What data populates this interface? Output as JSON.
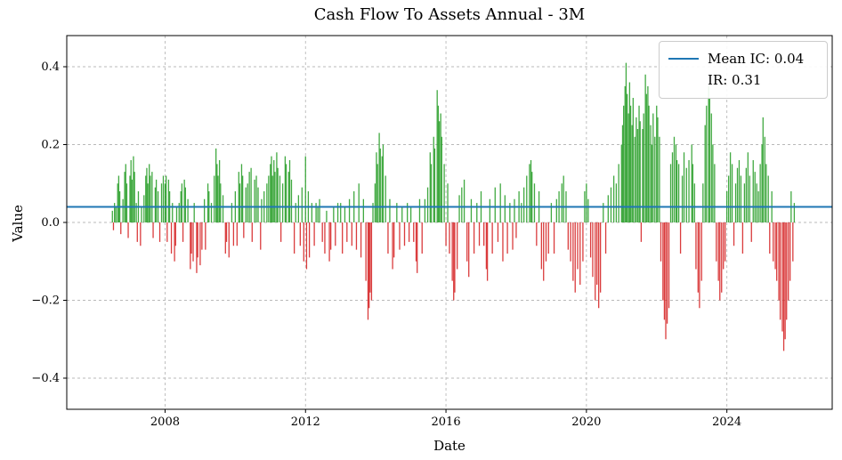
{
  "chart_data": {
    "type": "bar",
    "title": "Cash Flow To Assets Annual - 3M",
    "xlabel": "Date",
    "ylabel": "Value",
    "xlim": [
      2005.2,
      2027.0
    ],
    "ylim": [
      -0.48,
      0.48
    ],
    "x_ticks": [
      2008,
      2012,
      2016,
      2020,
      2024
    ],
    "x_tick_labels": [
      "2008",
      "2012",
      "2016",
      "2020",
      "2024"
    ],
    "y_ticks": [
      -0.4,
      -0.2,
      0.0,
      0.2,
      0.4
    ],
    "y_tick_labels": [
      "−0.4",
      "−0.2",
      "0.0",
      "0.2",
      "0.4"
    ],
    "grid": true,
    "legend_position": "top-right",
    "mean_line": {
      "value": 0.04,
      "color": "#1f77b4"
    },
    "legend": {
      "mean_label": "Mean IC: 0.04",
      "ir_label": "IR: 0.31"
    },
    "colors": {
      "positive": "#2ca02c",
      "negative": "#d62728",
      "grid": "#b9b9b9",
      "axes": "#000000"
    },
    "points": [
      [
        2006.5,
        0.03
      ],
      [
        2006.53,
        -0.02
      ],
      [
        2006.56,
        0.05
      ],
      [
        2006.6,
        0.04
      ],
      [
        2006.65,
        0.1
      ],
      [
        2006.68,
        0.12
      ],
      [
        2006.71,
        0.08
      ],
      [
        2006.74,
        -0.03
      ],
      [
        2006.8,
        0.06
      ],
      [
        2006.85,
        0.13
      ],
      [
        2006.88,
        0.15
      ],
      [
        2006.91,
        0.1
      ],
      [
        2006.95,
        -0.04
      ],
      [
        2007.0,
        0.12
      ],
      [
        2007.03,
        0.16
      ],
      [
        2007.06,
        0.11
      ],
      [
        2007.1,
        0.17
      ],
      [
        2007.13,
        0.13
      ],
      [
        2007.18,
        0.05
      ],
      [
        2007.21,
        -0.05
      ],
      [
        2007.24,
        0.08
      ],
      [
        2007.3,
        -0.06
      ],
      [
        2007.33,
        0.04
      ],
      [
        2007.4,
        0.07
      ],
      [
        2007.45,
        0.12
      ],
      [
        2007.48,
        0.14
      ],
      [
        2007.51,
        0.1
      ],
      [
        2007.55,
        0.15
      ],
      [
        2007.58,
        0.12
      ],
      [
        2007.63,
        0.13
      ],
      [
        2007.66,
        -0.04
      ],
      [
        2007.72,
        0.09
      ],
      [
        2007.75,
        0.11
      ],
      [
        2007.8,
        0.08
      ],
      [
        2007.85,
        -0.05
      ],
      [
        2007.9,
        0.1
      ],
      [
        2007.95,
        0.12
      ],
      [
        2008.0,
        0.1
      ],
      [
        2008.03,
        0.12
      ],
      [
        2008.06,
        -0.05
      ],
      [
        2008.1,
        0.11
      ],
      [
        2008.13,
        0.08
      ],
      [
        2008.18,
        -0.08
      ],
      [
        2008.21,
        0.05
      ],
      [
        2008.27,
        -0.1
      ],
      [
        2008.3,
        -0.06
      ],
      [
        2008.33,
        0.04
      ],
      [
        2008.4,
        0.05
      ],
      [
        2008.45,
        0.08
      ],
      [
        2008.48,
        0.1
      ],
      [
        2008.51,
        -0.05
      ],
      [
        2008.55,
        0.11
      ],
      [
        2008.58,
        0.09
      ],
      [
        2008.65,
        0.06
      ],
      [
        2008.72,
        -0.12
      ],
      [
        2008.75,
        -0.08
      ],
      [
        2008.8,
        -0.1
      ],
      [
        2008.83,
        0.05
      ],
      [
        2008.9,
        -0.13
      ],
      [
        2008.93,
        -0.09
      ],
      [
        2009.0,
        -0.11
      ],
      [
        2009.05,
        -0.07
      ],
      [
        2009.12,
        0.06
      ],
      [
        2009.15,
        -0.07
      ],
      [
        2009.22,
        0.1
      ],
      [
        2009.25,
        0.08
      ],
      [
        2009.32,
        0.05
      ],
      [
        2009.4,
        0.12
      ],
      [
        2009.45,
        0.19
      ],
      [
        2009.48,
        0.15
      ],
      [
        2009.51,
        0.12
      ],
      [
        2009.55,
        0.16
      ],
      [
        2009.58,
        0.1
      ],
      [
        2009.65,
        0.07
      ],
      [
        2009.72,
        -0.08
      ],
      [
        2009.75,
        -0.05
      ],
      [
        2009.82,
        -0.09
      ],
      [
        2009.9,
        0.05
      ],
      [
        2009.95,
        -0.06
      ],
      [
        2010.0,
        0.08
      ],
      [
        2010.05,
        -0.06
      ],
      [
        2010.1,
        0.13
      ],
      [
        2010.13,
        0.1
      ],
      [
        2010.18,
        0.15
      ],
      [
        2010.21,
        0.12
      ],
      [
        2010.24,
        -0.04
      ],
      [
        2010.3,
        0.09
      ],
      [
        2010.35,
        0.1
      ],
      [
        2010.4,
        0.13
      ],
      [
        2010.45,
        0.14
      ],
      [
        2010.48,
        -0.05
      ],
      [
        2010.55,
        0.11
      ],
      [
        2010.6,
        0.12
      ],
      [
        2010.65,
        0.09
      ],
      [
        2010.72,
        -0.07
      ],
      [
        2010.75,
        0.06
      ],
      [
        2010.82,
        0.08
      ],
      [
        2010.9,
        0.1
      ],
      [
        2010.95,
        0.12
      ],
      [
        2011.0,
        0.15
      ],
      [
        2011.03,
        0.17
      ],
      [
        2011.06,
        0.12
      ],
      [
        2011.1,
        0.16
      ],
      [
        2011.13,
        0.13
      ],
      [
        2011.18,
        0.18
      ],
      [
        2011.21,
        0.14
      ],
      [
        2011.27,
        0.12
      ],
      [
        2011.3,
        -0.05
      ],
      [
        2011.35,
        0.1
      ],
      [
        2011.42,
        0.17
      ],
      [
        2011.45,
        0.15
      ],
      [
        2011.52,
        0.13
      ],
      [
        2011.55,
        0.16
      ],
      [
        2011.6,
        0.11
      ],
      [
        2011.68,
        -0.08
      ],
      [
        2011.72,
        0.05
      ],
      [
        2011.8,
        0.07
      ],
      [
        2011.85,
        -0.06
      ],
      [
        2011.9,
        0.09
      ],
      [
        2011.95,
        -0.1
      ],
      [
        2012.0,
        0.17
      ],
      [
        2012.03,
        -0.12
      ],
      [
        2012.08,
        0.08
      ],
      [
        2012.11,
        -0.09
      ],
      [
        2012.18,
        0.05
      ],
      [
        2012.25,
        -0.06
      ],
      [
        2012.3,
        0.05
      ],
      [
        2012.35,
        0.04
      ],
      [
        2012.4,
        0.06
      ],
      [
        2012.48,
        -0.05
      ],
      [
        2012.55,
        -0.08
      ],
      [
        2012.6,
        0.03
      ],
      [
        2012.68,
        -0.1
      ],
      [
        2012.72,
        -0.07
      ],
      [
        2012.8,
        0.04
      ],
      [
        2012.85,
        -0.06
      ],
      [
        2012.92,
        0.05
      ],
      [
        2013.0,
        0.05
      ],
      [
        2013.05,
        -0.08
      ],
      [
        2013.12,
        0.04
      ],
      [
        2013.18,
        -0.05
      ],
      [
        2013.25,
        0.06
      ],
      [
        2013.32,
        -0.06
      ],
      [
        2013.38,
        0.08
      ],
      [
        2013.45,
        -0.07
      ],
      [
        2013.52,
        0.1
      ],
      [
        2013.58,
        -0.09
      ],
      [
        2013.65,
        0.06
      ],
      [
        2013.72,
        -0.15
      ],
      [
        2013.78,
        -0.25
      ],
      [
        2013.81,
        -0.22
      ],
      [
        2013.84,
        -0.18
      ],
      [
        2013.88,
        -0.2
      ],
      [
        2013.92,
        0.05
      ],
      [
        2013.98,
        0.1
      ],
      [
        2014.02,
        0.18
      ],
      [
        2014.05,
        0.15
      ],
      [
        2014.1,
        0.23
      ],
      [
        2014.13,
        0.19
      ],
      [
        2014.18,
        0.17
      ],
      [
        2014.21,
        0.2
      ],
      [
        2014.28,
        0.12
      ],
      [
        2014.35,
        -0.08
      ],
      [
        2014.4,
        0.06
      ],
      [
        2014.48,
        -0.12
      ],
      [
        2014.52,
        -0.09
      ],
      [
        2014.6,
        0.05
      ],
      [
        2014.68,
        -0.07
      ],
      [
        2014.75,
        0.04
      ],
      [
        2014.82,
        -0.06
      ],
      [
        2014.9,
        0.05
      ],
      [
        2014.95,
        -0.05
      ],
      [
        2015.0,
        0.04
      ],
      [
        2015.08,
        -0.05
      ],
      [
        2015.15,
        -0.1
      ],
      [
        2015.18,
        -0.13
      ],
      [
        2015.25,
        0.06
      ],
      [
        2015.32,
        -0.08
      ],
      [
        2015.4,
        0.06
      ],
      [
        2015.48,
        0.09
      ],
      [
        2015.55,
        0.18
      ],
      [
        2015.58,
        0.15
      ],
      [
        2015.65,
        0.22
      ],
      [
        2015.68,
        0.19
      ],
      [
        2015.75,
        0.34
      ],
      [
        2015.78,
        0.3
      ],
      [
        2015.81,
        0.26
      ],
      [
        2015.85,
        0.28
      ],
      [
        2015.88,
        0.22
      ],
      [
        2015.95,
        0.15
      ],
      [
        2016.0,
        -0.06
      ],
      [
        2016.05,
        0.1
      ],
      [
        2016.1,
        -0.08
      ],
      [
        2016.18,
        -0.15
      ],
      [
        2016.22,
        -0.2
      ],
      [
        2016.25,
        -0.18
      ],
      [
        2016.32,
        -0.12
      ],
      [
        2016.38,
        0.07
      ],
      [
        2016.45,
        0.09
      ],
      [
        2016.52,
        0.11
      ],
      [
        2016.6,
        -0.1
      ],
      [
        2016.65,
        -0.14
      ],
      [
        2016.72,
        0.06
      ],
      [
        2016.8,
        -0.08
      ],
      [
        2016.88,
        0.05
      ],
      [
        2016.95,
        -0.06
      ],
      [
        2017.0,
        0.08
      ],
      [
        2017.08,
        -0.06
      ],
      [
        2017.15,
        -0.12
      ],
      [
        2017.18,
        -0.15
      ],
      [
        2017.25,
        0.06
      ],
      [
        2017.32,
        -0.08
      ],
      [
        2017.4,
        0.09
      ],
      [
        2017.48,
        -0.05
      ],
      [
        2017.55,
        0.1
      ],
      [
        2017.62,
        -0.1
      ],
      [
        2017.68,
        0.07
      ],
      [
        2017.75,
        -0.08
      ],
      [
        2017.82,
        0.05
      ],
      [
        2017.9,
        -0.07
      ],
      [
        2017.95,
        0.06
      ],
      [
        2018.0,
        -0.04
      ],
      [
        2018.08,
        0.08
      ],
      [
        2018.15,
        0.05
      ],
      [
        2018.22,
        0.09
      ],
      [
        2018.3,
        0.12
      ],
      [
        2018.38,
        0.15
      ],
      [
        2018.42,
        0.16
      ],
      [
        2018.45,
        0.13
      ],
      [
        2018.52,
        0.1
      ],
      [
        2018.58,
        -0.06
      ],
      [
        2018.65,
        0.08
      ],
      [
        2018.72,
        -0.12
      ],
      [
        2018.78,
        -0.15
      ],
      [
        2018.85,
        -0.1
      ],
      [
        2018.92,
        -0.08
      ],
      [
        2019.0,
        0.05
      ],
      [
        2019.08,
        -0.08
      ],
      [
        2019.15,
        0.06
      ],
      [
        2019.22,
        0.08
      ],
      [
        2019.3,
        0.1
      ],
      [
        2019.35,
        0.12
      ],
      [
        2019.42,
        0.08
      ],
      [
        2019.48,
        -0.07
      ],
      [
        2019.55,
        -0.1
      ],
      [
        2019.62,
        -0.15
      ],
      [
        2019.68,
        -0.18
      ],
      [
        2019.75,
        -0.12
      ],
      [
        2019.82,
        -0.16
      ],
      [
        2019.9,
        -0.1
      ],
      [
        2019.95,
        0.08
      ],
      [
        2020.0,
        0.1
      ],
      [
        2020.05,
        0.06
      ],
      [
        2020.12,
        -0.09
      ],
      [
        2020.18,
        -0.14
      ],
      [
        2020.25,
        -0.2
      ],
      [
        2020.3,
        -0.16
      ],
      [
        2020.35,
        -0.22
      ],
      [
        2020.4,
        -0.18
      ],
      [
        2020.48,
        0.05
      ],
      [
        2020.55,
        -0.08
      ],
      [
        2020.62,
        0.07
      ],
      [
        2020.7,
        0.09
      ],
      [
        2020.78,
        0.12
      ],
      [
        2020.85,
        0.1
      ],
      [
        2020.92,
        0.15
      ],
      [
        2021.0,
        0.2
      ],
      [
        2021.03,
        0.25
      ],
      [
        2021.06,
        0.3
      ],
      [
        2021.1,
        0.35
      ],
      [
        2021.13,
        0.41
      ],
      [
        2021.16,
        0.33
      ],
      [
        2021.2,
        0.28
      ],
      [
        2021.23,
        0.36
      ],
      [
        2021.26,
        0.3
      ],
      [
        2021.3,
        0.25
      ],
      [
        2021.33,
        0.32
      ],
      [
        2021.38,
        0.22
      ],
      [
        2021.42,
        0.27
      ],
      [
        2021.46,
        0.24
      ],
      [
        2021.5,
        0.3
      ],
      [
        2021.53,
        0.26
      ],
      [
        2021.56,
        -0.05
      ],
      [
        2021.6,
        0.24
      ],
      [
        2021.63,
        0.28
      ],
      [
        2021.68,
        0.38
      ],
      [
        2021.71,
        0.33
      ],
      [
        2021.75,
        0.35
      ],
      [
        2021.78,
        0.3
      ],
      [
        2021.83,
        0.25
      ],
      [
        2021.86,
        0.2
      ],
      [
        2021.9,
        0.28
      ],
      [
        2021.95,
        0.22
      ],
      [
        2022.0,
        0.3
      ],
      [
        2022.03,
        0.27
      ],
      [
        2022.08,
        0.22
      ],
      [
        2022.12,
        -0.1
      ],
      [
        2022.18,
        -0.2
      ],
      [
        2022.22,
        -0.25
      ],
      [
        2022.26,
        -0.3
      ],
      [
        2022.3,
        -0.26
      ],
      [
        2022.35,
        -0.22
      ],
      [
        2022.4,
        0.15
      ],
      [
        2022.45,
        0.18
      ],
      [
        2022.5,
        0.22
      ],
      [
        2022.55,
        0.2
      ],
      [
        2022.58,
        0.16
      ],
      [
        2022.63,
        0.15
      ],
      [
        2022.68,
        -0.08
      ],
      [
        2022.73,
        0.12
      ],
      [
        2022.78,
        0.18
      ],
      [
        2022.85,
        0.14
      ],
      [
        2022.92,
        0.16
      ],
      [
        2023.0,
        0.2
      ],
      [
        2023.03,
        0.15
      ],
      [
        2023.08,
        0.1
      ],
      [
        2023.12,
        -0.12
      ],
      [
        2023.18,
        -0.18
      ],
      [
        2023.22,
        -0.22
      ],
      [
        2023.28,
        -0.15
      ],
      [
        2023.32,
        0.1
      ],
      [
        2023.38,
        0.25
      ],
      [
        2023.42,
        0.3
      ],
      [
        2023.48,
        0.35
      ],
      [
        2023.51,
        0.32
      ],
      [
        2023.56,
        0.28
      ],
      [
        2023.6,
        0.2
      ],
      [
        2023.65,
        0.15
      ],
      [
        2023.7,
        -0.1
      ],
      [
        2023.76,
        -0.15
      ],
      [
        2023.8,
        -0.2
      ],
      [
        2023.85,
        -0.18
      ],
      [
        2023.9,
        -0.12
      ],
      [
        2023.95,
        -0.1
      ],
      [
        2024.0,
        0.08
      ],
      [
        2024.05,
        0.12
      ],
      [
        2024.1,
        0.18
      ],
      [
        2024.15,
        0.15
      ],
      [
        2024.2,
        -0.06
      ],
      [
        2024.25,
        0.1
      ],
      [
        2024.3,
        0.14
      ],
      [
        2024.35,
        0.16
      ],
      [
        2024.4,
        0.12
      ],
      [
        2024.45,
        -0.08
      ],
      [
        2024.5,
        0.1
      ],
      [
        2024.55,
        0.14
      ],
      [
        2024.6,
        0.18
      ],
      [
        2024.65,
        0.12
      ],
      [
        2024.7,
        -0.05
      ],
      [
        2024.75,
        0.16
      ],
      [
        2024.8,
        0.13
      ],
      [
        2024.85,
        0.1
      ],
      [
        2024.9,
        0.08
      ],
      [
        2024.95,
        0.15
      ],
      [
        2025.0,
        0.2
      ],
      [
        2025.03,
        0.27
      ],
      [
        2025.08,
        0.22
      ],
      [
        2025.12,
        0.15
      ],
      [
        2025.18,
        0.12
      ],
      [
        2025.22,
        -0.08
      ],
      [
        2025.28,
        0.08
      ],
      [
        2025.32,
        -0.1
      ],
      [
        2025.38,
        -0.12
      ],
      [
        2025.42,
        -0.15
      ],
      [
        2025.48,
        -0.2
      ],
      [
        2025.52,
        -0.25
      ],
      [
        2025.58,
        -0.28
      ],
      [
        2025.62,
        -0.33
      ],
      [
        2025.66,
        -0.3
      ],
      [
        2025.7,
        -0.25
      ],
      [
        2025.75,
        -0.2
      ],
      [
        2025.8,
        -0.15
      ],
      [
        2025.83,
        0.08
      ],
      [
        2025.88,
        -0.1
      ],
      [
        2025.92,
        0.05
      ]
    ]
  }
}
